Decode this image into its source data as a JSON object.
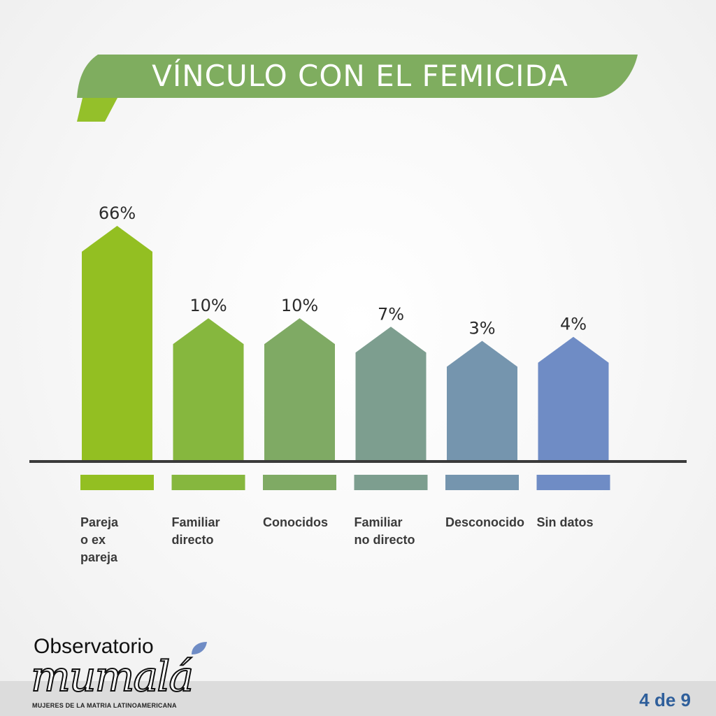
{
  "title": "VÍNCULO CON EL FEMICIDA",
  "chart_data": {
    "type": "bar",
    "categories": [
      "Pareja\no ex\npareja",
      "Familiar\ndirecto",
      "Conocidos",
      "Familiar\nno directo",
      "Desconocido",
      "Sin datos"
    ],
    "values": [
      66,
      10,
      10,
      7,
      3,
      4
    ],
    "value_labels": [
      "66%",
      "10%",
      "10%",
      "7%",
      "3%",
      "4%"
    ],
    "colors": [
      "#93bf22",
      "#86b73e",
      "#7faa64",
      "#7d9e8f",
      "#7595ae",
      "#6f8cc5"
    ],
    "title": "VÍNCULO CON EL FEMICIDA",
    "unit": "%"
  },
  "logo": {
    "top_text": "Observatorio",
    "word": "mumalá",
    "subtitle": "MUJERES DE LA MATRIA LATINOAMERICANA"
  },
  "page_counter": "4 de 9",
  "colors": {
    "banner": "#7fad5f",
    "banner_accent": "#94c02a",
    "axis": "#3a3a3a",
    "counter": "#2f5f9b"
  }
}
